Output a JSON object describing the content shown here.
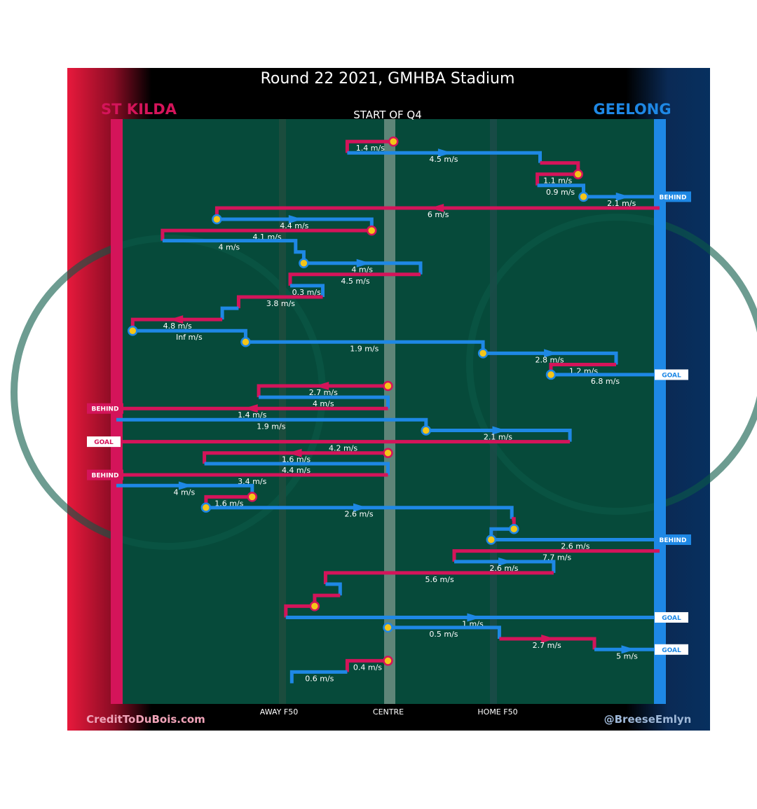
{
  "chart_data": {
    "type": "line",
    "title": "Round 22 2021, GMHBA Stadium",
    "subtitle": "START OF Q4",
    "teams": {
      "left": {
        "name": "ST KILDA",
        "color": "#d4145a"
      },
      "right": {
        "name": "GEELONG",
        "color": "#1e88e5"
      }
    },
    "x_axis_labels": [
      {
        "label": "AWAY F50",
        "x": 0.29
      },
      {
        "label": "CENTRE",
        "x": 0.5
      },
      {
        "label": "HOME F50",
        "x": 0.71
      }
    ],
    "credits": {
      "left": "CreditToDuBois.com",
      "right": "@BreeseEmlyn"
    },
    "colors": {
      "field": "#064a3a",
      "st_kilda": "#d4145a",
      "geelong": "#1e88e5",
      "marker": "#f5c518"
    },
    "xlim": [
      0,
      1
    ],
    "ylim": [
      0,
      1
    ],
    "series": [
      {
        "team": "stk",
        "arrow": false,
        "ballup": true,
        "speed": "1.4 m/s",
        "points": [
          [
            0.51,
            0.02
          ],
          [
            0.425,
            0.02
          ],
          [
            0.425,
            0.04
          ]
        ]
      },
      {
        "team": "gee",
        "arrow": true,
        "speed": "4.5 m/s",
        "points": [
          [
            0.425,
            0.04
          ],
          [
            0.78,
            0.04
          ],
          [
            0.78,
            0.058
          ]
        ]
      },
      {
        "team": "stk",
        "arrow": false,
        "speed": "",
        "points": [
          [
            0.78,
            0.058
          ],
          [
            0.85,
            0.058
          ],
          [
            0.85,
            0.078
          ]
        ]
      },
      {
        "team": "stk",
        "arrow": false,
        "ballup": true,
        "speed": "1.1 m/s",
        "points": [
          [
            0.85,
            0.078
          ],
          [
            0.775,
            0.078
          ],
          [
            0.775,
            0.098
          ]
        ]
      },
      {
        "team": "gee",
        "arrow": false,
        "speed": "0.9 m/s",
        "points": [
          [
            0.775,
            0.098
          ],
          [
            0.86,
            0.098
          ],
          [
            0.86,
            0.118
          ]
        ]
      },
      {
        "team": "gee",
        "arrow": true,
        "ballup": true,
        "speed": "2.1 m/s",
        "result": "BEHIND",
        "points": [
          [
            0.86,
            0.118
          ],
          [
            1.0,
            0.118
          ]
        ]
      },
      {
        "team": "stk",
        "arrow": true,
        "speed": "6 m/s",
        "points": [
          [
            1.0,
            0.138
          ],
          [
            0.185,
            0.138
          ],
          [
            0.185,
            0.158
          ]
        ]
      },
      {
        "team": "gee",
        "arrow": true,
        "ballup": true,
        "speed": "4.4 m/s",
        "points": [
          [
            0.185,
            0.158
          ],
          [
            0.47,
            0.158
          ],
          [
            0.47,
            0.178
          ]
        ]
      },
      {
        "team": "stk",
        "arrow": false,
        "ballup": true,
        "speed": "4.1 m/s",
        "points": [
          [
            0.47,
            0.178
          ],
          [
            0.085,
            0.178
          ],
          [
            0.085,
            0.196
          ]
        ]
      },
      {
        "team": "gee",
        "arrow": false,
        "speed": "4 m/s",
        "points": [
          [
            0.085,
            0.196
          ],
          [
            0.33,
            0.196
          ],
          [
            0.33,
            0.216
          ],
          [
            0.345,
            0.216
          ],
          [
            0.345,
            0.236
          ]
        ]
      },
      {
        "team": "gee",
        "arrow": true,
        "ballup": true,
        "speed": "4 m/s",
        "points": [
          [
            0.345,
            0.236
          ],
          [
            0.56,
            0.236
          ],
          [
            0.56,
            0.256
          ]
        ]
      },
      {
        "team": "stk",
        "arrow": false,
        "speed": "4.5 m/s",
        "points": [
          [
            0.56,
            0.256
          ],
          [
            0.32,
            0.256
          ],
          [
            0.32,
            0.276
          ]
        ]
      },
      {
        "team": "gee",
        "arrow": false,
        "speed": "0.3 m/s",
        "points": [
          [
            0.32,
            0.276
          ],
          [
            0.38,
            0.276
          ],
          [
            0.38,
            0.296
          ]
        ]
      },
      {
        "team": "stk",
        "arrow": false,
        "speed": "3.8 m/s",
        "points": [
          [
            0.38,
            0.296
          ],
          [
            0.225,
            0.296
          ],
          [
            0.225,
            0.316
          ]
        ]
      },
      {
        "team": "gee",
        "arrow": false,
        "speed": "",
        "points": [
          [
            0.225,
            0.316
          ],
          [
            0.195,
            0.316
          ],
          [
            0.195,
            0.336
          ]
        ]
      },
      {
        "team": "stk",
        "arrow": true,
        "speed": "4.8 m/s",
        "points": [
          [
            0.195,
            0.336
          ],
          [
            0.03,
            0.336
          ],
          [
            0.03,
            0.356
          ]
        ]
      },
      {
        "team": "gee",
        "arrow": false,
        "ballup": true,
        "speed": "Inf m/s",
        "points": [
          [
            0.03,
            0.356
          ],
          [
            0.238,
            0.356
          ],
          [
            0.238,
            0.376
          ]
        ]
      },
      {
        "team": "gee",
        "arrow": false,
        "ballup": true,
        "speed": "1.9 m/s",
        "points": [
          [
            0.238,
            0.376
          ],
          [
            0.675,
            0.376
          ],
          [
            0.675,
            0.396
          ]
        ]
      },
      {
        "team": "gee",
        "arrow": true,
        "ballup": true,
        "speed": "2.8 m/s",
        "points": [
          [
            0.675,
            0.396
          ],
          [
            0.92,
            0.396
          ],
          [
            0.92,
            0.416
          ]
        ]
      },
      {
        "team": "stk",
        "arrow": false,
        "speed": "1.2 m/s",
        "points": [
          [
            0.92,
            0.416
          ],
          [
            0.8,
            0.416
          ],
          [
            0.8,
            0.434
          ]
        ]
      },
      {
        "team": "gee",
        "arrow": false,
        "ballup": true,
        "speed": "6.8 m/s",
        "result": "GOAL",
        "points": [
          [
            0.8,
            0.434
          ],
          [
            1.0,
            0.434
          ]
        ]
      },
      {
        "team": "stk",
        "arrow": true,
        "ballup": true,
        "speed": "2.7 m/s",
        "points": [
          [
            0.5,
            0.454
          ],
          [
            0.262,
            0.454
          ],
          [
            0.262,
            0.474
          ]
        ]
      },
      {
        "team": "gee",
        "arrow": false,
        "speed": "4 m/s",
        "points": [
          [
            0.262,
            0.474
          ],
          [
            0.5,
            0.474
          ],
          [
            0.5,
            0.494
          ]
        ]
      },
      {
        "team": "stk",
        "arrow": true,
        "speed": "1.4 m/s",
        "result": "BEHIND",
        "points": [
          [
            0.5,
            0.494
          ],
          [
            0.0,
            0.494
          ]
        ]
      },
      {
        "team": "gee",
        "arrow": false,
        "speed": "1.9 m/s",
        "points": [
          [
            0.0,
            0.514
          ],
          [
            0.57,
            0.514
          ],
          [
            0.57,
            0.533
          ]
        ]
      },
      {
        "team": "gee",
        "arrow": true,
        "ballup": true,
        "speed": "2.1 m/s",
        "points": [
          [
            0.57,
            0.533
          ],
          [
            0.835,
            0.533
          ],
          [
            0.835,
            0.553
          ]
        ]
      },
      {
        "team": "stk",
        "arrow": false,
        "speed": "4.2 m/s",
        "result": "GOAL",
        "points": [
          [
            0.835,
            0.553
          ],
          [
            0.0,
            0.553
          ]
        ]
      },
      {
        "team": "stk",
        "arrow": true,
        "ballup": true,
        "speed": "1.6 m/s",
        "points": [
          [
            0.5,
            0.573
          ],
          [
            0.162,
            0.573
          ],
          [
            0.162,
            0.592
          ]
        ]
      },
      {
        "team": "gee",
        "arrow": false,
        "speed": "4.4 m/s",
        "points": [
          [
            0.162,
            0.592
          ],
          [
            0.5,
            0.592
          ],
          [
            0.5,
            0.612
          ]
        ]
      },
      {
        "team": "stk",
        "arrow": false,
        "speed": "3.4 m/s",
        "result": "BEHIND",
        "points": [
          [
            0.5,
            0.612
          ],
          [
            0.0,
            0.612
          ]
        ]
      },
      {
        "team": "gee",
        "arrow": true,
        "speed": "4 m/s",
        "points": [
          [
            0.0,
            0.631
          ],
          [
            0.25,
            0.631
          ],
          [
            0.25,
            0.651
          ]
        ]
      },
      {
        "team": "stk",
        "arrow": false,
        "ballup": true,
        "speed": "1.6 m/s",
        "points": [
          [
            0.25,
            0.651
          ],
          [
            0.165,
            0.651
          ],
          [
            0.165,
            0.67
          ]
        ]
      },
      {
        "team": "gee",
        "arrow": true,
        "ballup": true,
        "speed": "2.6 m/s",
        "points": [
          [
            0.165,
            0.67
          ],
          [
            0.728,
            0.67
          ],
          [
            0.728,
            0.69
          ]
        ]
      },
      {
        "team": "stk",
        "arrow": false,
        "speed": "",
        "points": [
          [
            0.728,
            0.69
          ],
          [
            0.732,
            0.69
          ],
          [
            0.732,
            0.708
          ]
        ]
      },
      {
        "team": "gee",
        "arrow": false,
        "ballup": true,
        "speed": "",
        "points": [
          [
            0.732,
            0.708
          ],
          [
            0.69,
            0.708
          ],
          [
            0.69,
            0.727
          ]
        ]
      },
      {
        "team": "gee",
        "arrow": false,
        "ballup": true,
        "speed": "2.6 m/s",
        "result": "BEHIND",
        "points": [
          [
            0.69,
            0.727
          ],
          [
            1.0,
            0.727
          ]
        ]
      },
      {
        "team": "stk",
        "arrow": false,
        "speed": "7.7 m/s",
        "points": [
          [
            1.0,
            0.747
          ],
          [
            0.622,
            0.747
          ],
          [
            0.622,
            0.766
          ]
        ]
      },
      {
        "team": "gee",
        "arrow": true,
        "speed": "2.6 m/s",
        "points": [
          [
            0.622,
            0.766
          ],
          [
            0.805,
            0.766
          ],
          [
            0.805,
            0.786
          ]
        ]
      },
      {
        "team": "stk",
        "arrow": false,
        "speed": "5.6 m/s",
        "points": [
          [
            0.805,
            0.786
          ],
          [
            0.385,
            0.786
          ],
          [
            0.385,
            0.806
          ]
        ]
      },
      {
        "team": "gee",
        "arrow": false,
        "speed": "",
        "points": [
          [
            0.385,
            0.806
          ],
          [
            0.412,
            0.806
          ],
          [
            0.412,
            0.826
          ]
        ]
      },
      {
        "team": "stk",
        "arrow": false,
        "speed": "",
        "points": [
          [
            0.412,
            0.826
          ],
          [
            0.365,
            0.826
          ],
          [
            0.365,
            0.845
          ]
        ]
      },
      {
        "team": "stk",
        "arrow": false,
        "ballup": true,
        "speed": "",
        "points": [
          [
            0.365,
            0.845
          ],
          [
            0.312,
            0.845
          ],
          [
            0.312,
            0.865
          ]
        ]
      },
      {
        "team": "gee",
        "arrow": true,
        "speed": "1 m/s",
        "result": "GOAL",
        "points": [
          [
            0.312,
            0.865
          ],
          [
            1.0,
            0.865
          ]
        ]
      },
      {
        "team": "gee",
        "arrow": false,
        "ballup": true,
        "speed": "0.5 m/s",
        "points": [
          [
            0.5,
            0.883
          ],
          [
            0.705,
            0.883
          ],
          [
            0.705,
            0.903
          ]
        ]
      },
      {
        "team": "stk",
        "arrow": true,
        "speed": "2.7 m/s",
        "points": [
          [
            0.705,
            0.903
          ],
          [
            0.88,
            0.903
          ],
          [
            0.88,
            0.922
          ]
        ]
      },
      {
        "team": "gee",
        "arrow": true,
        "speed": "5 m/s",
        "result": "GOAL",
        "points": [
          [
            0.88,
            0.922
          ],
          [
            1.0,
            0.922
          ]
        ]
      },
      {
        "team": "stk",
        "arrow": false,
        "ballup": true,
        "speed": "0.4 m/s",
        "points": [
          [
            0.5,
            0.942
          ],
          [
            0.425,
            0.942
          ],
          [
            0.425,
            0.962
          ]
        ]
      },
      {
        "team": "gee",
        "arrow": false,
        "speed": "0.6 m/s",
        "points": [
          [
            0.425,
            0.962
          ],
          [
            0.323,
            0.962
          ],
          [
            0.323,
            0.982
          ]
        ]
      }
    ]
  }
}
